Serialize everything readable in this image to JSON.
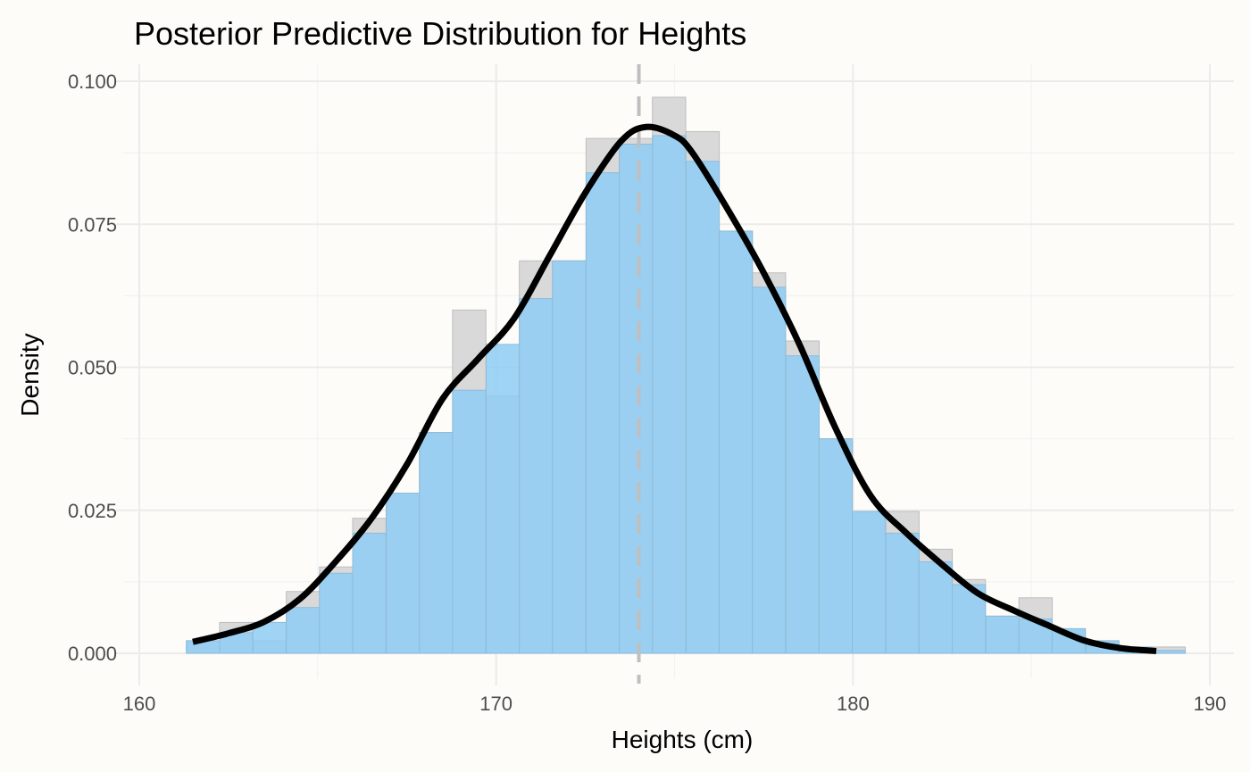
{
  "chart_data": {
    "type": "histogram",
    "title": "Posterior Predictive Distribution for Heights",
    "xlabel": "Heights (cm)",
    "ylabel": "Density",
    "xlim": [
      160,
      190
    ],
    "ylim": [
      0,
      0.1
    ],
    "x_ticks": [
      160,
      170,
      180,
      190
    ],
    "y_ticks": [
      0,
      0.025,
      0.05,
      0.075,
      0.1
    ],
    "y_tick_labels": [
      "0.000",
      "0.025",
      "0.050",
      "0.075",
      "0.100"
    ],
    "grid": true,
    "bin_width": 0.933,
    "bins_x0": [
      161.32,
      162.25,
      163.18,
      164.12,
      165.05,
      165.98,
      166.92,
      167.85,
      168.78,
      169.72,
      170.65,
      171.58,
      172.52,
      173.45,
      174.38,
      175.32,
      176.25,
      177.18,
      178.12,
      179.05,
      179.98,
      180.92,
      181.85,
      182.78,
      183.72,
      184.65,
      185.58,
      186.52,
      187.45,
      188.38
    ],
    "observed_density": [
      0.0022,
      0.0054,
      0.0022,
      0.0108,
      0.0151,
      0.0236,
      0.028,
      0.0386,
      0.06,
      0.045,
      0.0686,
      0.0686,
      0.09,
      0.09,
      0.0972,
      0.0912,
      0.0738,
      0.0665,
      0.0546,
      0.0375,
      0.0248,
      0.0248,
      0.0182,
      0.0129,
      0.0065,
      0.0097,
      0.0043,
      0.0022,
      0.0011,
      0.0011
    ],
    "predicted_density": [
      0.0022,
      0.0036,
      0.0054,
      0.008,
      0.014,
      0.021,
      0.028,
      0.0386,
      0.046,
      0.054,
      0.062,
      0.0686,
      0.084,
      0.089,
      0.0905,
      0.086,
      0.0738,
      0.064,
      0.052,
      0.0375,
      0.0248,
      0.021,
      0.016,
      0.012,
      0.0065,
      0.006,
      0.0043,
      0.0022,
      0.0011,
      0.0005
    ],
    "density_curve": {
      "x": [
        161.5,
        162.5,
        163.5,
        164.5,
        165.5,
        166.5,
        167.5,
        168.5,
        169.5,
        170.5,
        171.5,
        172.5,
        173.5,
        174.2,
        175.0,
        175.5,
        176.5,
        177.5,
        178.5,
        179.5,
        180.5,
        181.5,
        182.5,
        183.5,
        184.5,
        185.5,
        186.5,
        187.5,
        188.5
      ],
      "y": [
        0.002,
        0.0035,
        0.0055,
        0.0095,
        0.016,
        0.0235,
        0.033,
        0.0445,
        0.0515,
        0.0585,
        0.0695,
        0.0805,
        0.0895,
        0.092,
        0.0905,
        0.0875,
        0.0775,
        0.0665,
        0.054,
        0.0395,
        0.0275,
        0.021,
        0.0155,
        0.0105,
        0.0075,
        0.0048,
        0.0022,
        0.0009,
        0.0004
      ]
    },
    "mean_line_x": 174.0
  }
}
